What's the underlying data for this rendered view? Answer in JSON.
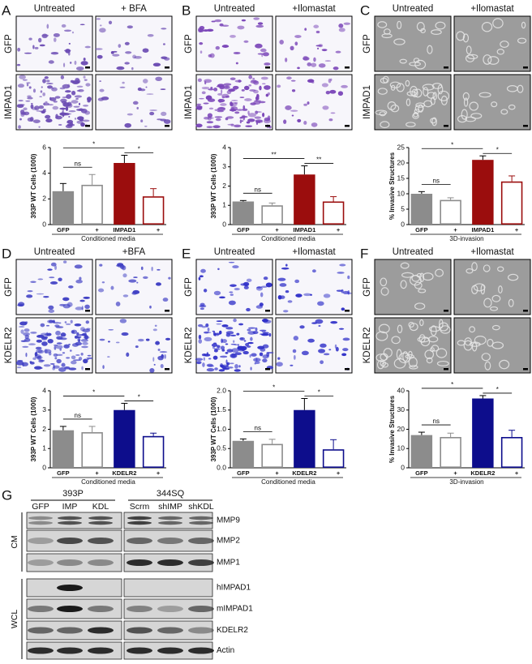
{
  "panels": [
    {
      "letter": "A",
      "columns": [
        "Untreated",
        "+ BFA"
      ],
      "rows": [
        "GFP",
        "IMPAD1"
      ]
    },
    {
      "letter": "B",
      "columns": [
        "Untreated",
        "+Ilomastat"
      ],
      "rows": [
        "GFP",
        "IMPAD1"
      ]
    },
    {
      "letter": "C",
      "columns": [
        "Untreated",
        "+Ilomastat"
      ],
      "rows": [
        "GFP",
        "IMPAD1"
      ]
    },
    {
      "letter": "D",
      "columns": [
        "Untreated",
        "+BFA"
      ],
      "rows": [
        "GFP",
        "KDELR2"
      ]
    },
    {
      "letter": "E",
      "columns": [
        "Untreated",
        "+Ilomastat"
      ],
      "rows": [
        "GFP",
        "KDELR2"
      ]
    },
    {
      "letter": "F",
      "columns": [
        "Untreated",
        "+Ilomastat"
      ],
      "rows": [
        "GFP",
        "KDELR2"
      ]
    }
  ],
  "chart_data": [
    {
      "type": "bar",
      "ylabel": "393P WT Cells (1000)",
      "xlabel": "Conditioned media",
      "categories": [
        "GFP",
        "+",
        "IMPAD1",
        "+"
      ],
      "values": [
        2.6,
        3.1,
        4.8,
        2.2
      ],
      "errors": [
        0.6,
        0.8,
        0.6,
        0.6
      ],
      "colors": [
        "#8c8c8c",
        "#8c8c8c",
        "#9b0d0d",
        "#9b0d0d"
      ],
      "hollow": [
        false,
        true,
        false,
        true
      ],
      "ylim": [
        0,
        6
      ],
      "yticks": [
        0,
        2,
        4,
        6
      ],
      "significance": [
        "ns",
        "*",
        "*"
      ]
    },
    {
      "type": "bar",
      "ylabel": "393P WT Cells (1000)",
      "xlabel": "Conditioned media",
      "categories": [
        "GFP",
        "+",
        "IMPAD1",
        "+"
      ],
      "values": [
        1.2,
        1.0,
        2.6,
        1.2
      ],
      "errors": [
        0.05,
        0.12,
        0.45,
        0.25
      ],
      "colors": [
        "#8c8c8c",
        "#8c8c8c",
        "#9b0d0d",
        "#9b0d0d"
      ],
      "hollow": [
        false,
        true,
        false,
        true
      ],
      "ylim": [
        0,
        4
      ],
      "yticks": [
        0,
        1,
        2,
        3,
        4
      ],
      "significance": [
        "ns",
        "**",
        "**"
      ]
    },
    {
      "type": "bar",
      "ylabel": "% Invasive Structures",
      "xlabel": "3D-invasion",
      "categories": [
        "GFP",
        "+",
        "IMPAD1",
        "+"
      ],
      "values": [
        10,
        8,
        21,
        14
      ],
      "errors": [
        0.7,
        0.7,
        1.3,
        1.8
      ],
      "colors": [
        "#8c8c8c",
        "#8c8c8c",
        "#9b0d0d",
        "#9b0d0d"
      ],
      "hollow": [
        false,
        true,
        false,
        true
      ],
      "ylim": [
        0,
        25
      ],
      "yticks": [
        0,
        5,
        10,
        15,
        20,
        25
      ],
      "significance": [
        "ns",
        "*",
        "*"
      ]
    },
    {
      "type": "bar",
      "ylabel": "393P WT Cells (1000)",
      "xlabel": "Conditioned media",
      "categories": [
        "GFP",
        "+",
        "KDELR2",
        "+"
      ],
      "values": [
        1.95,
        1.85,
        3.0,
        1.65
      ],
      "errors": [
        0.2,
        0.3,
        0.35,
        0.15
      ],
      "colors": [
        "#8c8c8c",
        "#8c8c8c",
        "#0d0d8c",
        "#0d0d8c"
      ],
      "hollow": [
        false,
        true,
        false,
        true
      ],
      "ylim": [
        0,
        4
      ],
      "yticks": [
        0,
        1,
        2,
        3,
        4
      ],
      "significance": [
        "ns",
        "*",
        "*"
      ]
    },
    {
      "type": "bar",
      "ylabel": "393P WT Cells (1000)",
      "xlabel": "Conditioned media",
      "categories": [
        "GFP",
        "+",
        "KDELR2",
        "+"
      ],
      "values": [
        0.7,
        0.62,
        1.5,
        0.48
      ],
      "errors": [
        0.05,
        0.12,
        0.3,
        0.25
      ],
      "colors": [
        "#8c8c8c",
        "#8c8c8c",
        "#0d0d8c",
        "#0d0d8c"
      ],
      "hollow": [
        false,
        true,
        false,
        true
      ],
      "ylim": [
        0,
        2
      ],
      "yticks": [
        {
          "value": 0,
          "label": "0.0"
        },
        {
          "value": 0.5,
          "label": "0.5"
        },
        {
          "value": 1,
          "label": "1.0"
        },
        {
          "value": 1.5,
          "label": "1.5"
        },
        {
          "value": 2,
          "label": "2.0"
        }
      ],
      "significance": [
        "ns",
        "*",
        "*"
      ]
    },
    {
      "type": "bar",
      "ylabel": "% Invasive Structures",
      "xlabel": "3D-invasion",
      "categories": [
        "GFP",
        "+",
        "KDELR2",
        "+"
      ],
      "values": [
        17,
        16,
        36,
        16
      ],
      "errors": [
        1.5,
        2,
        1.5,
        3.5
      ],
      "colors": [
        "#8c8c8c",
        "#8c8c8c",
        "#0d0d8c",
        "#0d0d8c"
      ],
      "hollow": [
        false,
        true,
        false,
        true
      ],
      "ylim": [
        0,
        40
      ],
      "yticks": [
        0,
        10,
        20,
        30,
        40
      ],
      "significance": [
        "ns",
        "*",
        "*"
      ]
    }
  ],
  "blot": {
    "letter": "G",
    "groups": [
      {
        "name": "393P",
        "lanes": [
          "GFP",
          "IMP",
          "KDL"
        ]
      },
      {
        "name": "344SQ",
        "lanes": [
          "Scrm",
          "shIMP",
          "shKDL"
        ]
      }
    ],
    "sections": [
      {
        "name": "CM",
        "rows": [
          "MMP9",
          "MMP2",
          "MMP1"
        ]
      },
      {
        "name": "WCL",
        "rows": [
          "hIMPAD1",
          "mIMPAD1",
          "KDELR2",
          "Actin"
        ]
      }
    ]
  }
}
